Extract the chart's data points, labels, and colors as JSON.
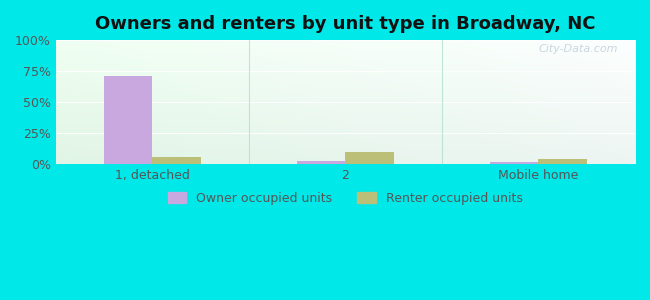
{
  "title": "Owners and renters by unit type in Broadway, NC",
  "categories": [
    "1, detached",
    "2",
    "Mobile home"
  ],
  "owner_values": [
    71,
    3,
    1.5
  ],
  "renter_values": [
    6,
    10,
    4
  ],
  "owner_color": "#c9a8e0",
  "renter_color": "#bbbf78",
  "outer_bg": "#00e8e8",
  "ylim": [
    0,
    100
  ],
  "yticks": [
    0,
    25,
    50,
    75,
    100
  ],
  "ytick_labels": [
    "0%",
    "25%",
    "50%",
    "75%",
    "100%"
  ],
  "legend_owner": "Owner occupied units",
  "legend_renter": "Renter occupied units",
  "bar_width": 0.25,
  "title_fontsize": 13,
  "axis_fontsize": 9,
  "legend_fontsize": 9,
  "group_positions": [
    0,
    1,
    2
  ],
  "xlim": [
    -0.5,
    2.5
  ]
}
